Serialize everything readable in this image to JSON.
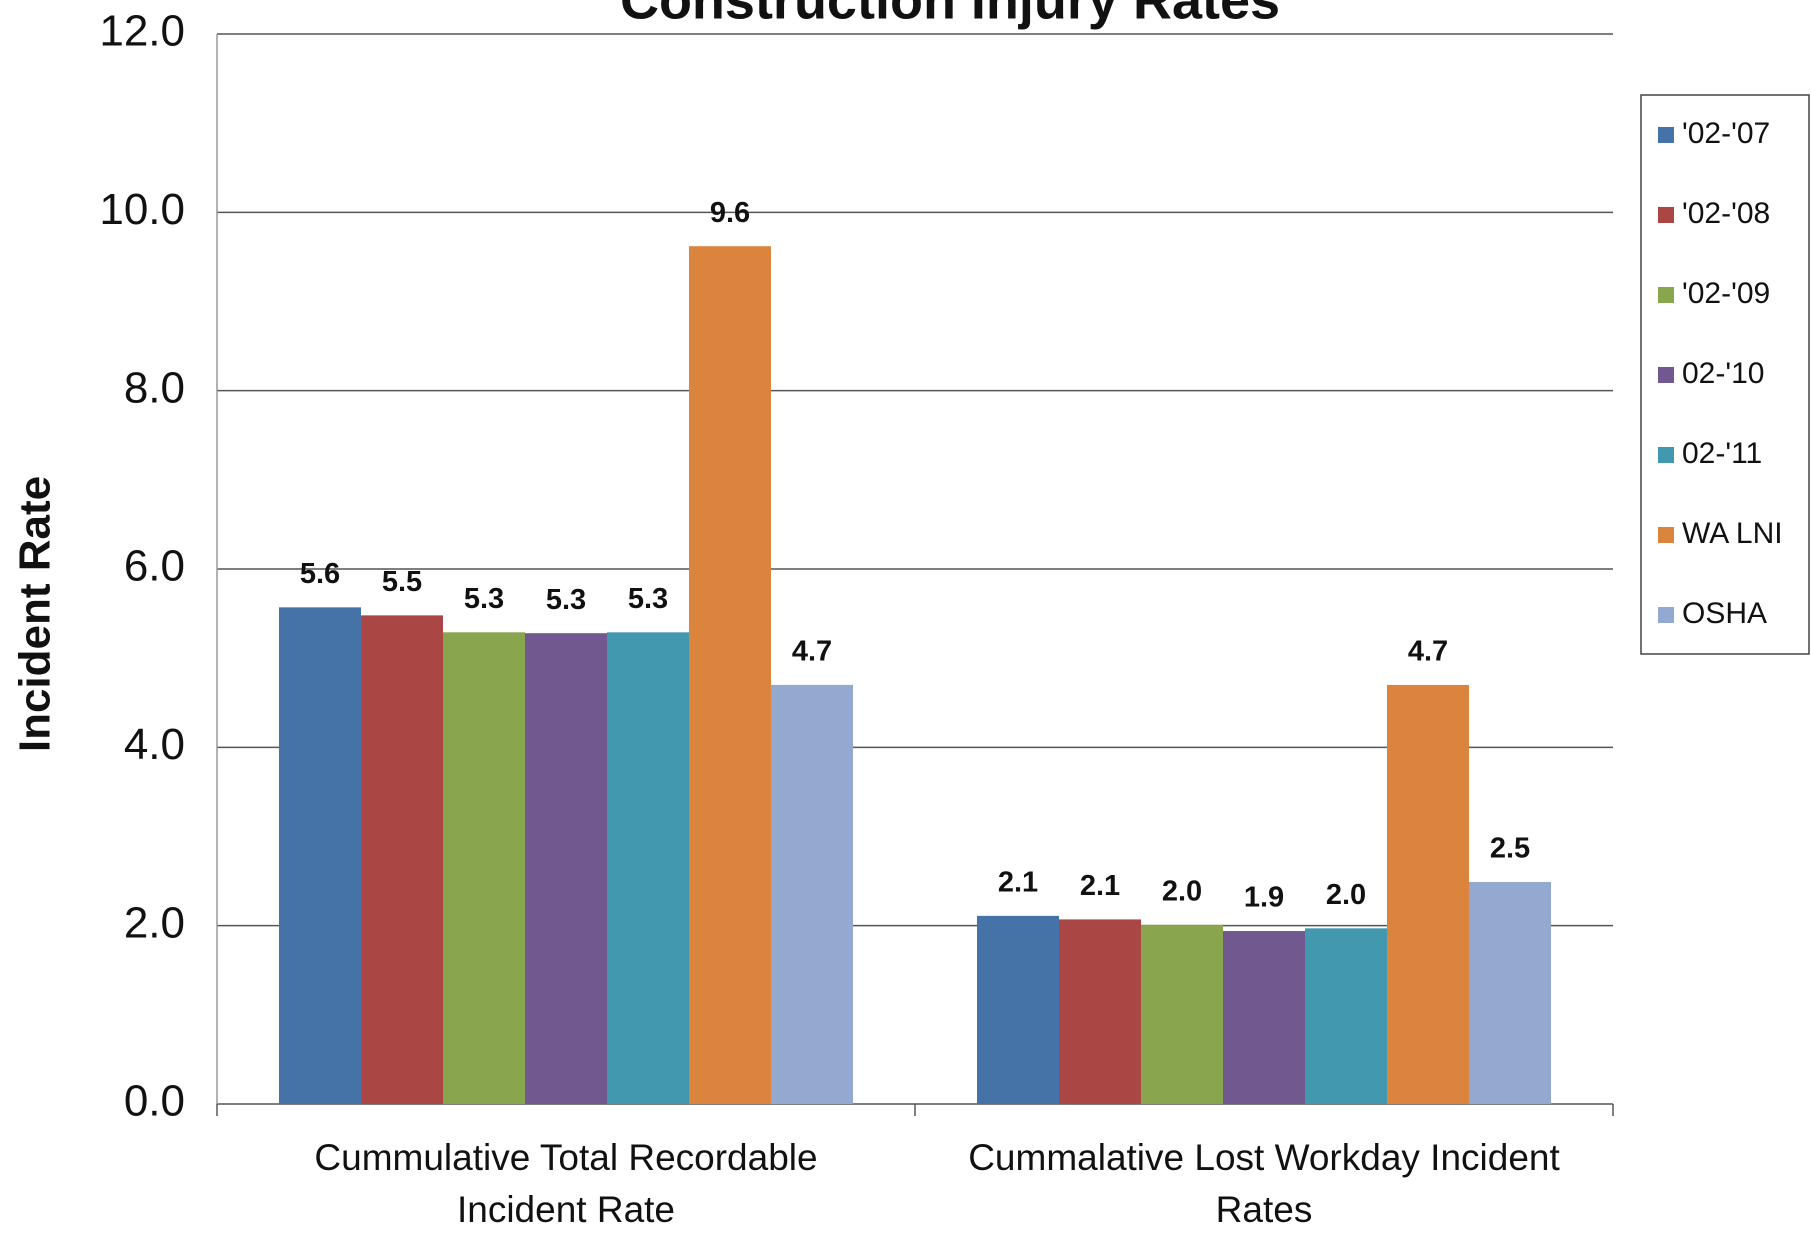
{
  "chart_data": {
    "type": "bar",
    "title": "Construction Injury Rates",
    "y_label": "Incident Rate",
    "categories": [
      "Cummulative Total Recordable Incident Rate",
      "Cummalative Lost Workday Incident Rates"
    ],
    "series": [
      {
        "name": "'02-'07",
        "color": "#4572a7",
        "values": [
          5.57,
          2.11
        ],
        "value_labels": [
          "5.6",
          "2.1"
        ]
      },
      {
        "name": "'02-'08",
        "color": "#aa4643",
        "values": [
          5.48,
          2.07
        ],
        "value_labels": [
          "5.5",
          "2.1"
        ]
      },
      {
        "name": "'02-'09",
        "color": "#89a54e",
        "values": [
          5.29,
          2.01
        ],
        "value_labels": [
          "5.3",
          "2.0"
        ]
      },
      {
        "name": "02-'10",
        "color": "#71588f",
        "values": [
          5.28,
          1.94
        ],
        "value_labels": [
          "5.3",
          "1.9"
        ]
      },
      {
        "name": "02-'11",
        "color": "#4198af",
        "values": [
          5.29,
          1.97
        ],
        "value_labels": [
          "5.3",
          "2.0"
        ]
      },
      {
        "name": "WA LNI",
        "color": "#db843d",
        "values": [
          9.62,
          4.7
        ],
        "value_labels": [
          "9.6",
          "4.7"
        ]
      },
      {
        "name": "OSHA",
        "color": "#93a9cf",
        "values": [
          4.7,
          2.49
        ],
        "value_labels": [
          "4.7",
          "2.5"
        ]
      }
    ],
    "ylim": [
      0,
      12
    ],
    "yticks": [
      {
        "value": 0,
        "label": "0.0"
      },
      {
        "value": 2,
        "label": "2.0"
      },
      {
        "value": 4,
        "label": "4.0"
      },
      {
        "value": 6,
        "label": "6.0"
      },
      {
        "value": 8,
        "label": "8.0"
      },
      {
        "value": 10,
        "label": "10.0"
      },
      {
        "value": 12,
        "label": "12.0"
      }
    ],
    "grid": true,
    "legend": "right"
  }
}
